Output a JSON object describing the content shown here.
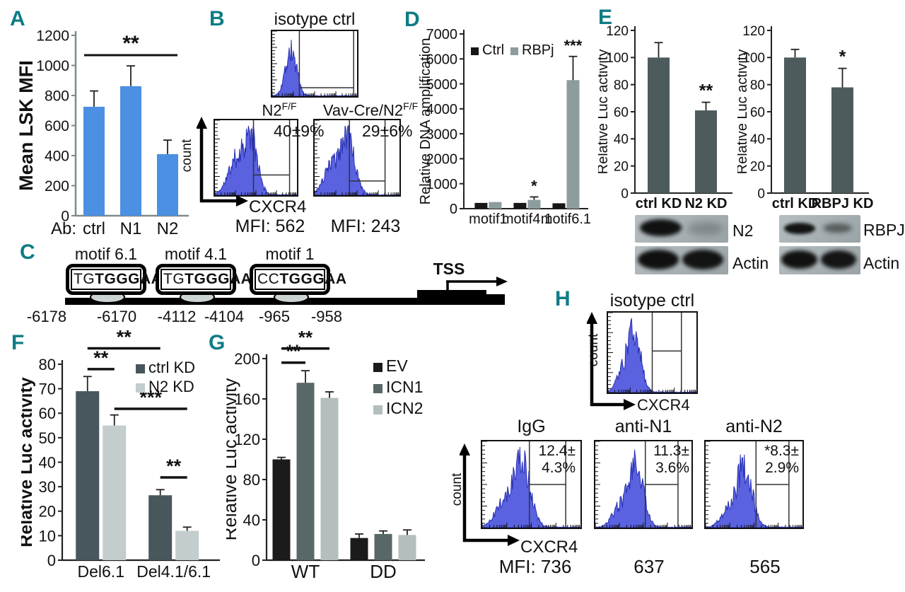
{
  "colors": {
    "panel_letter": "#0e7c85",
    "flow_fill": "#5a62e0",
    "flow_stroke": "#2730b4",
    "bar_blue": "#4b90e2",
    "ctrl_black": "#161616",
    "rbpj_gray": "#8d9d9d",
    "dark_slate": "#4d5b5d",
    "ctrl_kd_dark": "#47575b",
    "n2_kd_light": "#c3cdcd",
    "icn1_gray": "#586767",
    "icn2_light": "#b4bebe"
  },
  "panels": {
    "a": "A",
    "b": "B",
    "c": "C",
    "d": "D",
    "e": "E",
    "f": "F",
    "g": "G",
    "h": "H"
  },
  "flow": {
    "count_label": "count",
    "cxcr4_label": "CXCR4",
    "b": {
      "isotype_title": "isotype ctrl",
      "n2ff_base": "N2",
      "n2ff_sup": "F/F",
      "vav_base": "Vav-Cre/N2",
      "vav_sup": "F/F",
      "n2ff_pct": "40±9%",
      "vav_pct": "29±6%",
      "mfi_left": "MFI: 562",
      "mfi_right": "MFI: 243"
    },
    "h": {
      "isotype_title": "isotype ctrl",
      "plots": [
        {
          "title": "IgG",
          "pct1": "12.4±",
          "pct2": "4.3%",
          "mfi": "MFI: 736"
        },
        {
          "title": "anti-N1",
          "pct1": "11.3±",
          "pct2": "3.6%",
          "mfi": "637"
        },
        {
          "title": "anti-N2",
          "pct1": "*8.3±",
          "pct2": "2.9%",
          "mfi": "565"
        }
      ]
    }
  },
  "diagram_c": {
    "motifs": [
      {
        "name": "motif 6.1",
        "seq_plain": "TG",
        "seq_bold": "TGGGAA",
        "pos_left": "-6178",
        "pos_right": "-6170"
      },
      {
        "name": "motif 4.1",
        "seq_plain": "TG",
        "seq_bold": "TGGGAA",
        "pos_left": "-4112",
        "pos_right": "-4104"
      },
      {
        "name": "motif 1",
        "seq_plain": "CC",
        "seq_bold": "TGGGAA",
        "pos_left": "-965",
        "pos_right": "-958"
      }
    ],
    "tss_label": "TSS"
  },
  "blots": {
    "n2_label": "N2",
    "actin_left_label": "Actin",
    "rbpj_label": "RBPJ",
    "actin_right_label": "Actin"
  },
  "chart_data": [
    {
      "id": "chart-a",
      "type": "bar",
      "ylabel": "Mean LSK MFI",
      "x_prefix": "Ab:",
      "categories": [
        "ctrl",
        "N1",
        "N2"
      ],
      "values": [
        725,
        862,
        410
      ],
      "errors": [
        105,
        135,
        93
      ],
      "ylim": [
        0,
        1200
      ],
      "ystep": 200,
      "bar_color": "#4b90e2",
      "sig": [
        {
          "x1": 0,
          "x2": 2,
          "y": 1068,
          "label": "**"
        }
      ]
    },
    {
      "id": "chart-d",
      "type": "bar",
      "ylabel": "Relative DNA amplification",
      "categories": [
        "motif1",
        "motif4.1",
        "motif6.1"
      ],
      "series": [
        {
          "name": "Ctrl",
          "color": "#161616",
          "values": [
            230,
            230,
            215
          ],
          "errors": [
            0,
            0,
            0
          ]
        },
        {
          "name": "RBPj",
          "color": "#8d9d9d",
          "values": [
            265,
            350,
            5150
          ],
          "errors": [
            0,
            120,
            950
          ]
        }
      ],
      "ylim": [
        0,
        7000
      ],
      "ystep": 1000,
      "stars": [
        {
          "cat": 1,
          "series": 1,
          "label": "*"
        },
        {
          "cat": 2,
          "series": 1,
          "label": "***"
        }
      ]
    },
    {
      "id": "chart-e1",
      "type": "bar",
      "ylabel": "Relative Luc activity",
      "categories": [
        "ctrl KD",
        "N2 KD"
      ],
      "values": [
        100,
        61
      ],
      "errors": [
        11,
        6
      ],
      "ylim": [
        0,
        120
      ],
      "ystep": 20,
      "bar_color": "#4d5b5d",
      "stars": [
        {
          "cat": 1,
          "series": 0,
          "label": "**"
        }
      ]
    },
    {
      "id": "chart-e2",
      "type": "bar",
      "ylabel": "Relative Luc activity",
      "categories": [
        "ctrl KD",
        "RBPJ KD"
      ],
      "values": [
        100,
        78
      ],
      "errors": [
        6,
        14
      ],
      "ylim": [
        0,
        120
      ],
      "ystep": 20,
      "bar_color": "#4d5b5d",
      "stars": [
        {
          "cat": 1,
          "series": 0,
          "label": "*"
        }
      ]
    },
    {
      "id": "chart-f",
      "type": "bar",
      "ylabel": "Relative Luc activity",
      "categories": [
        "Del6.1",
        "Del4.1/6.1"
      ],
      "series": [
        {
          "name": "ctrl KD",
          "color": "#47575b",
          "values": [
            69,
            26.5
          ],
          "errors": [
            6,
            2.3
          ]
        },
        {
          "name": "N2 KD",
          "color": "#c3cdcd",
          "values": [
            55,
            12
          ],
          "errors": [
            4.3,
            1.5
          ]
        }
      ],
      "ylim": [
        0,
        80
      ],
      "ystep": 10,
      "sig": [
        {
          "x1": [
            0,
            0
          ],
          "x2": [
            0,
            1
          ],
          "y": 78,
          "label": "**"
        },
        {
          "x1": [
            0,
            0
          ],
          "x2": [
            1,
            0
          ],
          "y": 86.5,
          "label": "**"
        },
        {
          "x1": [
            0,
            1
          ],
          "x2": [
            1,
            1
          ],
          "y": 61.8,
          "label": "***"
        },
        {
          "x1": [
            1,
            0
          ],
          "x2": [
            1,
            1
          ],
          "y": 33.8,
          "label": "**"
        }
      ]
    },
    {
      "id": "chart-g",
      "type": "bar",
      "ylabel": "Relative Luc activity",
      "categories": [
        "WT",
        "DD"
      ],
      "series": [
        {
          "name": "EV",
          "color": "#1b1b1b",
          "values": [
            100,
            22
          ],
          "errors": [
            2,
            4
          ]
        },
        {
          "name": "ICN1",
          "color": "#586767",
          "values": [
            176,
            26
          ],
          "errors": [
            12,
            3
          ]
        },
        {
          "name": "ICN2",
          "color": "#b4bebe",
          "values": [
            161,
            25
          ],
          "errors": [
            6,
            5
          ]
        }
      ],
      "ylim": [
        0,
        200
      ],
      "ystep": 40,
      "sig": [
        {
          "x1": [
            0,
            0
          ],
          "x2": [
            0,
            1
          ],
          "y": 196,
          "label": "**"
        },
        {
          "x1": [
            0,
            0
          ],
          "x2": [
            0,
            2
          ],
          "y": 210,
          "label": "**"
        }
      ]
    }
  ]
}
